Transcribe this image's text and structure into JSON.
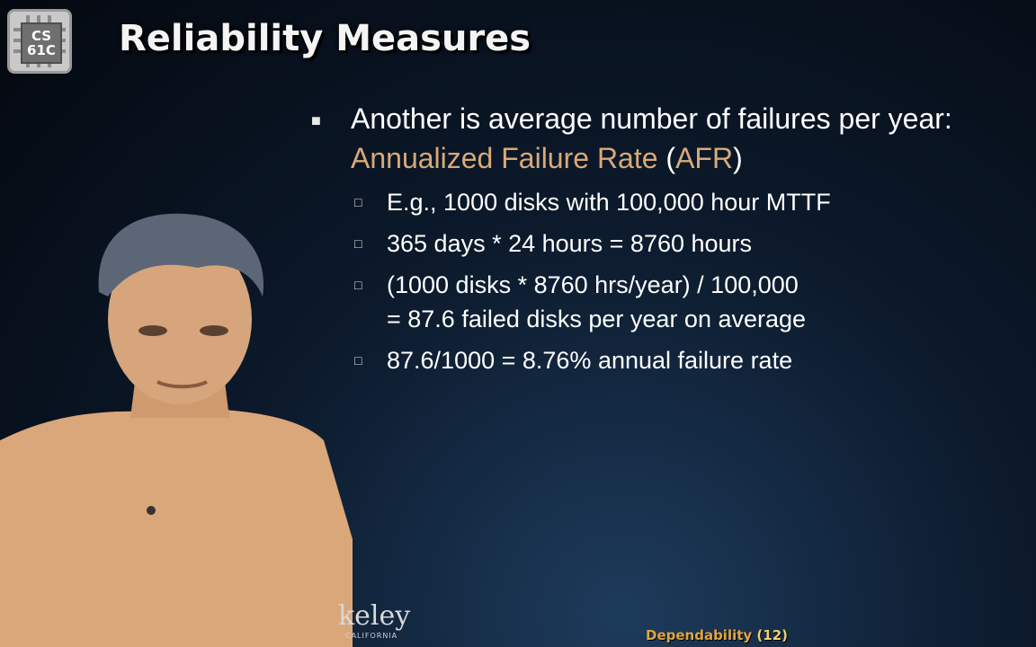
{
  "logo": {
    "line1": "CS",
    "line2": "61C"
  },
  "slide": {
    "title": "Reliability Measures",
    "bullet": {
      "prefix": "Another is average number of failures per year: ",
      "term": "Annualized Failure Rate",
      "paren_open": " (",
      "abbr": "AFR",
      "paren_close": ")"
    },
    "sub_bullets": [
      "E.g., 1000 disks with 100,000 hour MTTF",
      "365 days * 24 hours = 8760 hours",
      "(1000 disks * 8760 hrs/year) / 100,000",
      "= 87.6 failed disks per year on average",
      "87.6/1000 = 8.76% annual failure rate"
    ]
  },
  "watermark": {
    "text": "keley",
    "subtext": "CALIFORNIA"
  },
  "footer": {
    "topic": "Dependability",
    "page": "(12)"
  },
  "colors": {
    "accent": "#d9a978",
    "footer": "#e0a640",
    "skin": "#d9a77a"
  }
}
